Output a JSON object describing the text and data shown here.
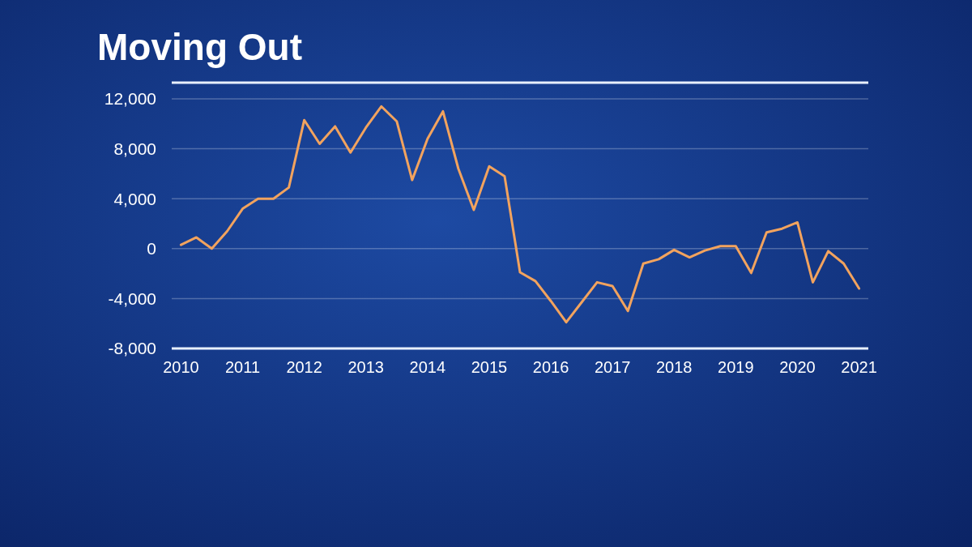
{
  "chart_data": {
    "type": "line",
    "title": "Moving Out",
    "x": [
      2010,
      2010.25,
      2010.5,
      2010.75,
      2011,
      2011.25,
      2011.5,
      2011.75,
      2012,
      2012.25,
      2012.5,
      2012.75,
      2013,
      2013.25,
      2013.5,
      2013.75,
      2014,
      2014.25,
      2014.5,
      2014.75,
      2015,
      2015.25,
      2015.5,
      2015.75,
      2016,
      2016.25,
      2016.5,
      2016.75,
      2017,
      2017.25,
      2017.5,
      2017.75,
      2018,
      2018.25,
      2018.5,
      2018.75,
      2019,
      2019.25,
      2019.5,
      2019.75,
      2020,
      2020.25,
      2020.5,
      2020.75,
      2021
    ],
    "series": [
      {
        "color": "#f2a35e",
        "values": [
          300,
          900,
          0,
          1400,
          3200,
          4000,
          4000,
          4900,
          10300,
          8400,
          9800,
          7700,
          9700,
          11400,
          10200,
          5500,
          8800,
          11000,
          6400,
          3100,
          6600,
          5800,
          -1900,
          -2600,
          -4200,
          -5900,
          -4300,
          -2700,
          -3000,
          -5000,
          -1200,
          -850,
          -100,
          -700,
          -150,
          200,
          200,
          -1950,
          1300,
          1600,
          2100,
          -2700,
          -200,
          -1200,
          -3200
        ]
      }
    ],
    "xlim": [
      2009.85,
      2021.15
    ],
    "xticks": [
      2010,
      2011,
      2012,
      2013,
      2014,
      2015,
      2016,
      2017,
      2018,
      2019,
      2020,
      2021
    ],
    "ylim": [
      -8000,
      13300
    ],
    "yticks": [
      {
        "value": -8000,
        "label": "-8,000"
      },
      {
        "value": -4000,
        "label": "-4,000"
      },
      0,
      {
        "value": 4000,
        "label": "4,000"
      },
      {
        "value": 8000,
        "label": "8,000"
      },
      {
        "value": 12000,
        "label": "12,000"
      }
    ],
    "grid": "y",
    "marker": "none",
    "line_style": "solid"
  }
}
